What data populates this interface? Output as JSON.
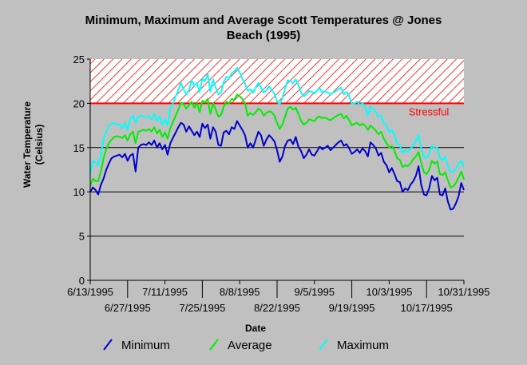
{
  "chart_data": {
    "type": "line",
    "title_line1": "Minimum, Maximum and Average Scott Temperatures @ Jones",
    "title_line2": "Beach (1995)",
    "xlabel": "Date",
    "ylabel_line1": "Water Temperature",
    "ylabel_line2": "(Celsius)",
    "ylim": [
      0,
      25
    ],
    "yticks": [
      0,
      5,
      10,
      15,
      20,
      25
    ],
    "grid": true,
    "legend_position": "bottom",
    "x_start": "6/13/1995",
    "x_end": "10/31/1995",
    "x_num_days": 141,
    "xticks_top": [
      {
        "label": "6/13/1995",
        "day": 0
      },
      {
        "label": "7/11/1995",
        "day": 28
      },
      {
        "label": "8/8/1995",
        "day": 56
      },
      {
        "label": "9/5/1995",
        "day": 84
      },
      {
        "label": "10/3/1995",
        "day": 112
      },
      {
        "label": "10/31/1995",
        "day": 140
      }
    ],
    "xticks_bottom": [
      {
        "label": "6/27/1995",
        "day": 14
      },
      {
        "label": "7/25/1995",
        "day": 42
      },
      {
        "label": "8/22/1995",
        "day": 70
      },
      {
        "label": "9/19/1995",
        "day": 98
      },
      {
        "label": "10/17/1995",
        "day": 126
      }
    ],
    "stress_zone": {
      "from": 20,
      "to": 25,
      "label": "Stressful",
      "color": "#ff0000"
    },
    "series": [
      {
        "name": "Minimum",
        "color": "#0000cc",
        "values": [
          10.0,
          10.5,
          10.2,
          9.7,
          10.8,
          11.5,
          12.5,
          13.2,
          13.8,
          14.0,
          14.1,
          14.2,
          13.9,
          14.3,
          13.5,
          14.1,
          14.3,
          12.3,
          15.0,
          15.3,
          15.4,
          15.3,
          15.6,
          15.3,
          15.8,
          15.0,
          15.5,
          14.8,
          15.3,
          14.2,
          15.5,
          16.1,
          16.7,
          17.3,
          17.8,
          17.6,
          16.8,
          17.4,
          16.9,
          16.4,
          16.8,
          16.2,
          17.7,
          17.2,
          17.6,
          16.0,
          17.3,
          16.8,
          15.3,
          15.2,
          16.7,
          16.9,
          16.5,
          17.3,
          17.1,
          18.0,
          17.5,
          17.0,
          16.4,
          15.0,
          15.5,
          15.0,
          15.9,
          16.8,
          16.4,
          15.2,
          15.9,
          16.4,
          16.1,
          15.7,
          14.7,
          13.4,
          14.0,
          15.2,
          15.8,
          15.9,
          15.4,
          16.2,
          15.1,
          14.6,
          13.8,
          14.2,
          14.8,
          14.2,
          14.1,
          14.6,
          15.1,
          14.8,
          15.0,
          15.2,
          14.7,
          15.0,
          15.3,
          15.6,
          15.8,
          15.2,
          15.4,
          14.9,
          14.3,
          14.5,
          14.8,
          14.4,
          14.9,
          14.6,
          14.0,
          15.6,
          15.3,
          14.9,
          14.1,
          14.4,
          13.4,
          13.0,
          12.2,
          12.7,
          12.0,
          11.2,
          11.1,
          10.0,
          10.4,
          10.2,
          10.8,
          11.2,
          11.8,
          12.9,
          10.8,
          9.7,
          9.6,
          10.4,
          11.8,
          11.3,
          11.6,
          9.7,
          9.6,
          10.4,
          8.9,
          8.0,
          8.1,
          8.7,
          9.5,
          11.0,
          10.2
        ]
      },
      {
        "name": "Average",
        "color": "#00ee00",
        "values": [
          10.6,
          11.5,
          11.2,
          11.2,
          12.3,
          13.8,
          14.8,
          15.5,
          15.9,
          16.2,
          16.3,
          16.2,
          16.1,
          16.4,
          15.8,
          16.5,
          16.8,
          15.5,
          16.8,
          16.9,
          17.0,
          16.9,
          17.1,
          16.8,
          17.3,
          16.6,
          17.0,
          16.2,
          16.7,
          16.0,
          17.2,
          17.9,
          18.6,
          19.3,
          20.1,
          19.9,
          19.4,
          19.8,
          20.2,
          19.5,
          20.0,
          19.0,
          20.3,
          20.1,
          20.5,
          18.8,
          20.0,
          19.3,
          18.5,
          18.7,
          19.6,
          20.2,
          20.0,
          20.5,
          20.4,
          21.0,
          20.8,
          20.5,
          20.0,
          18.6,
          18.9,
          18.7,
          19.0,
          19.4,
          19.2,
          18.6,
          18.9,
          19.1,
          19.0,
          18.6,
          17.8,
          17.1,
          17.6,
          18.5,
          19.4,
          19.6,
          19.3,
          19.5,
          18.8,
          18.0,
          17.6,
          17.8,
          18.2,
          18.1,
          18.0,
          18.4,
          18.5,
          18.3,
          18.4,
          18.2,
          18.1,
          18.3,
          18.5,
          18.7,
          18.8,
          18.3,
          18.6,
          18.1,
          17.5,
          17.7,
          17.8,
          17.5,
          17.7,
          17.5,
          17.0,
          17.5,
          17.2,
          16.9,
          16.5,
          16.8,
          16.0,
          15.5,
          15.0,
          15.2,
          14.6,
          13.8,
          13.6,
          12.8,
          13.0,
          12.9,
          13.2,
          13.7,
          14.0,
          14.5,
          13.3,
          12.2,
          12.0,
          12.5,
          13.5,
          13.2,
          13.4,
          12.0,
          11.9,
          12.2,
          11.3,
          10.5,
          10.6,
          11.0,
          11.6,
          12.3,
          11.4
        ]
      },
      {
        "name": "Maximum",
        "color": "#00ffff",
        "values": [
          12.0,
          13.5,
          13.3,
          13.0,
          14.2,
          16.0,
          16.8,
          17.5,
          17.7,
          17.8,
          17.6,
          17.6,
          17.2,
          17.8,
          17.0,
          18.2,
          18.6,
          17.8,
          18.5,
          18.6,
          18.5,
          18.4,
          18.6,
          18.2,
          18.8,
          18.0,
          18.5,
          17.6,
          18.2,
          17.5,
          19.4,
          20.0,
          20.8,
          21.5,
          22.3,
          21.6,
          21.0,
          21.5,
          22.6,
          22.0,
          22.3,
          21.3,
          22.8,
          22.5,
          23.3,
          21.3,
          22.7,
          21.8,
          21.0,
          21.2,
          22.4,
          23.0,
          22.8,
          23.4,
          23.6,
          24.0,
          23.5,
          22.8,
          22.2,
          21.4,
          21.6,
          21.2,
          21.8,
          22.3,
          21.8,
          21.2,
          21.5,
          21.9,
          21.5,
          21.1,
          20.2,
          19.9,
          20.6,
          21.7,
          22.6,
          22.5,
          22.3,
          22.7,
          22.1,
          21.2,
          20.8,
          21.0,
          21.4,
          21.3,
          21.1,
          21.5,
          21.7,
          21.2,
          21.4,
          21.2,
          21.0,
          21.2,
          21.4,
          21.6,
          21.8,
          21.0,
          21.3,
          20.8,
          19.9,
          20.0,
          20.2,
          19.8,
          20.0,
          19.7,
          18.6,
          19.6,
          19.4,
          19.0,
          18.5,
          18.6,
          17.8,
          17.5,
          16.8,
          17.0,
          16.4,
          15.5,
          15.2,
          14.4,
          14.7,
          14.5,
          14.9,
          15.2,
          15.8,
          16.4,
          15.0,
          14.0,
          13.8,
          14.3,
          15.2,
          14.9,
          15.0,
          13.8,
          13.6,
          14.0,
          12.9,
          12.2,
          12.3,
          12.6,
          13.2,
          13.5,
          12.8
        ]
      }
    ]
  }
}
